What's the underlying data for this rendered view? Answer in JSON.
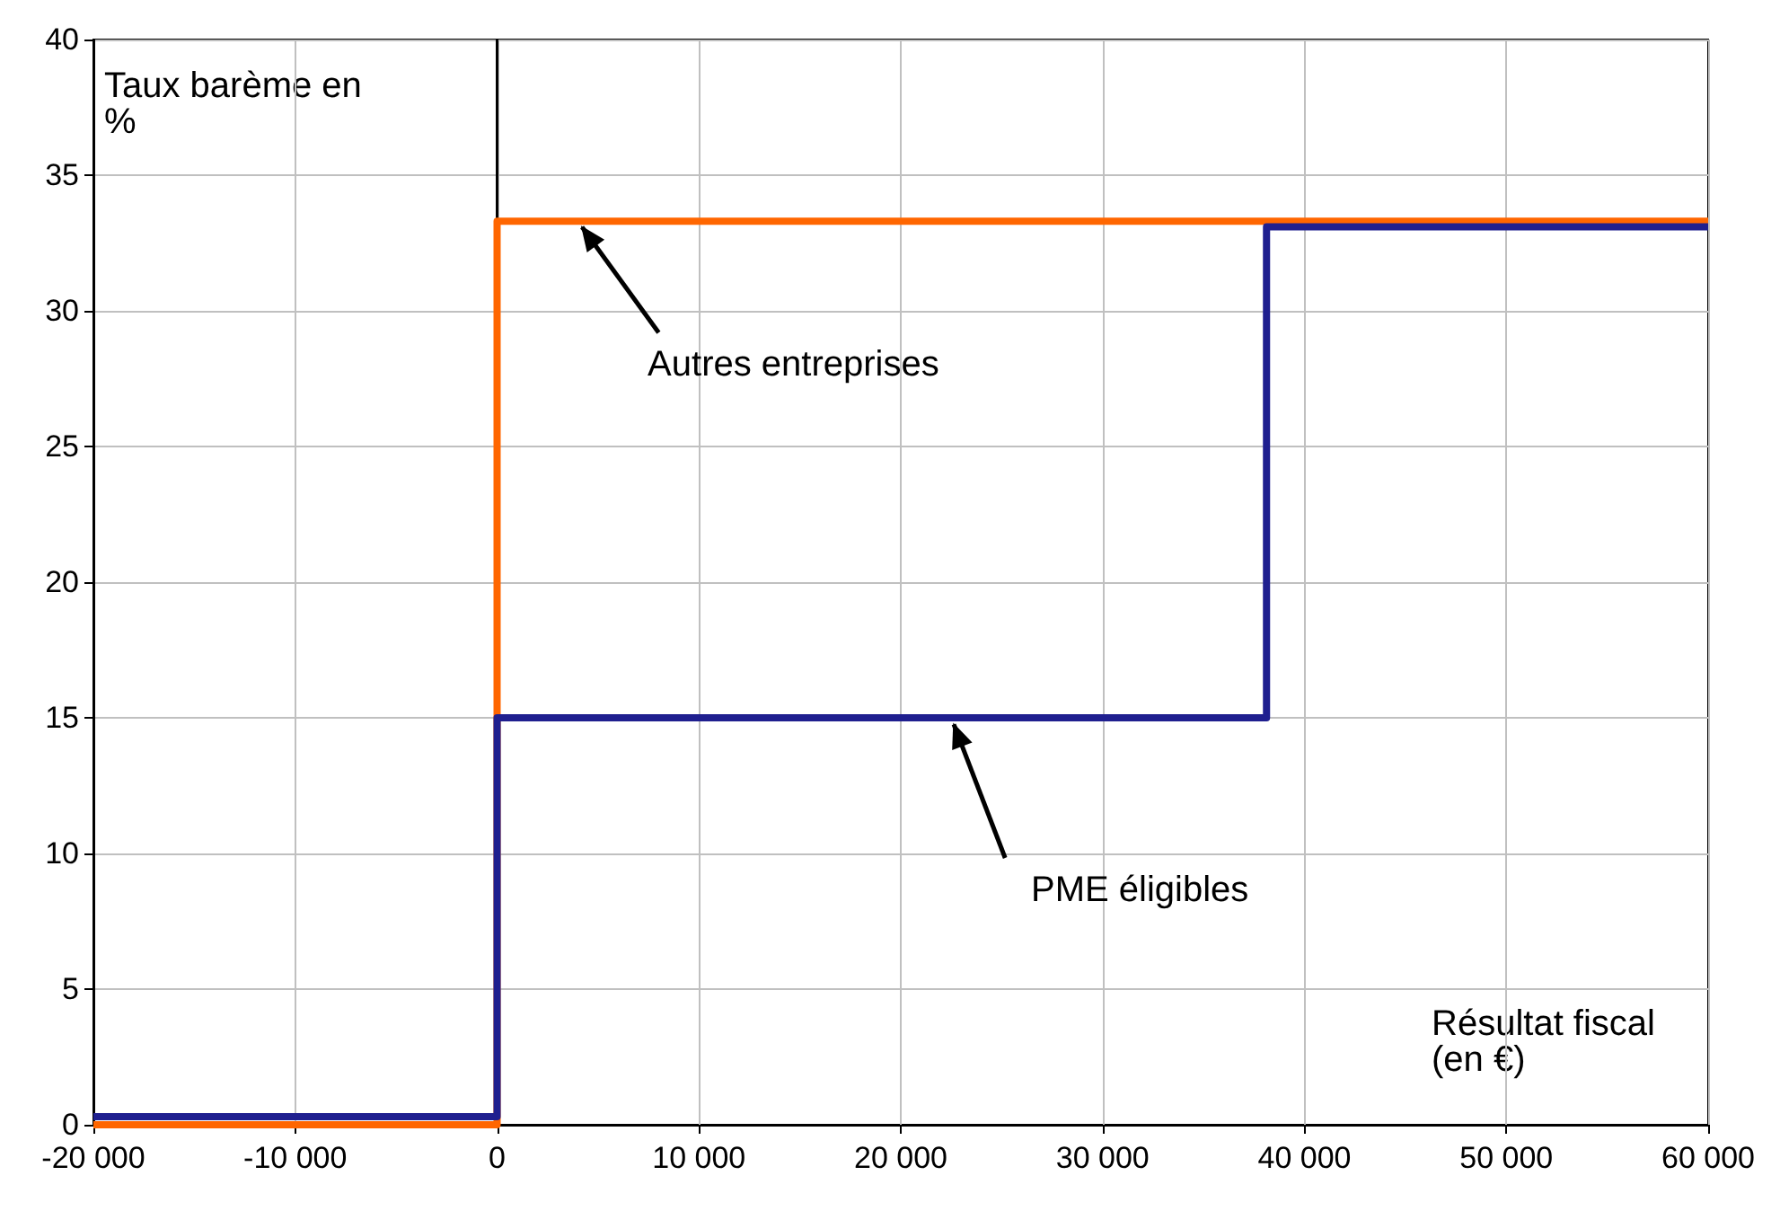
{
  "chart_data": {
    "type": "step",
    "xlabel": "Résultat fiscal (en €)",
    "ylabel": "Taux barème en %",
    "series": [
      {
        "color": "#ff6600",
        "x": [
          -20000,
          0,
          60000
        ],
        "values": [
          0,
          33.3,
          33.3
        ]
      },
      {
        "color": "#1f1f8f",
        "x": [
          -20000,
          0,
          38120,
          60000
        ],
        "values": [
          0.3,
          15,
          33.1,
          33.1
        ]
      }
    ],
    "xlim": [
      -20000,
      60000
    ],
    "xticks": [
      -20000,
      -10000,
      0,
      10000,
      20000,
      30000,
      40000,
      50000,
      60000
    ],
    "ylim": [
      0,
      40
    ],
    "yticks": [
      0,
      5,
      10,
      15,
      20,
      25,
      30,
      35,
      40
    ],
    "grid": true,
    "marker": "none",
    "line_style": "solid",
    "ref_lines": [
      {
        "axis": "x",
        "value": 0,
        "color": "#000000"
      }
    ],
    "annotations": [
      {
        "text": "Autres entreprises",
        "x": 4000,
        "y": 33.3
      },
      {
        "text": "PME éligibles",
        "x": 22500,
        "y": 15
      }
    ]
  }
}
